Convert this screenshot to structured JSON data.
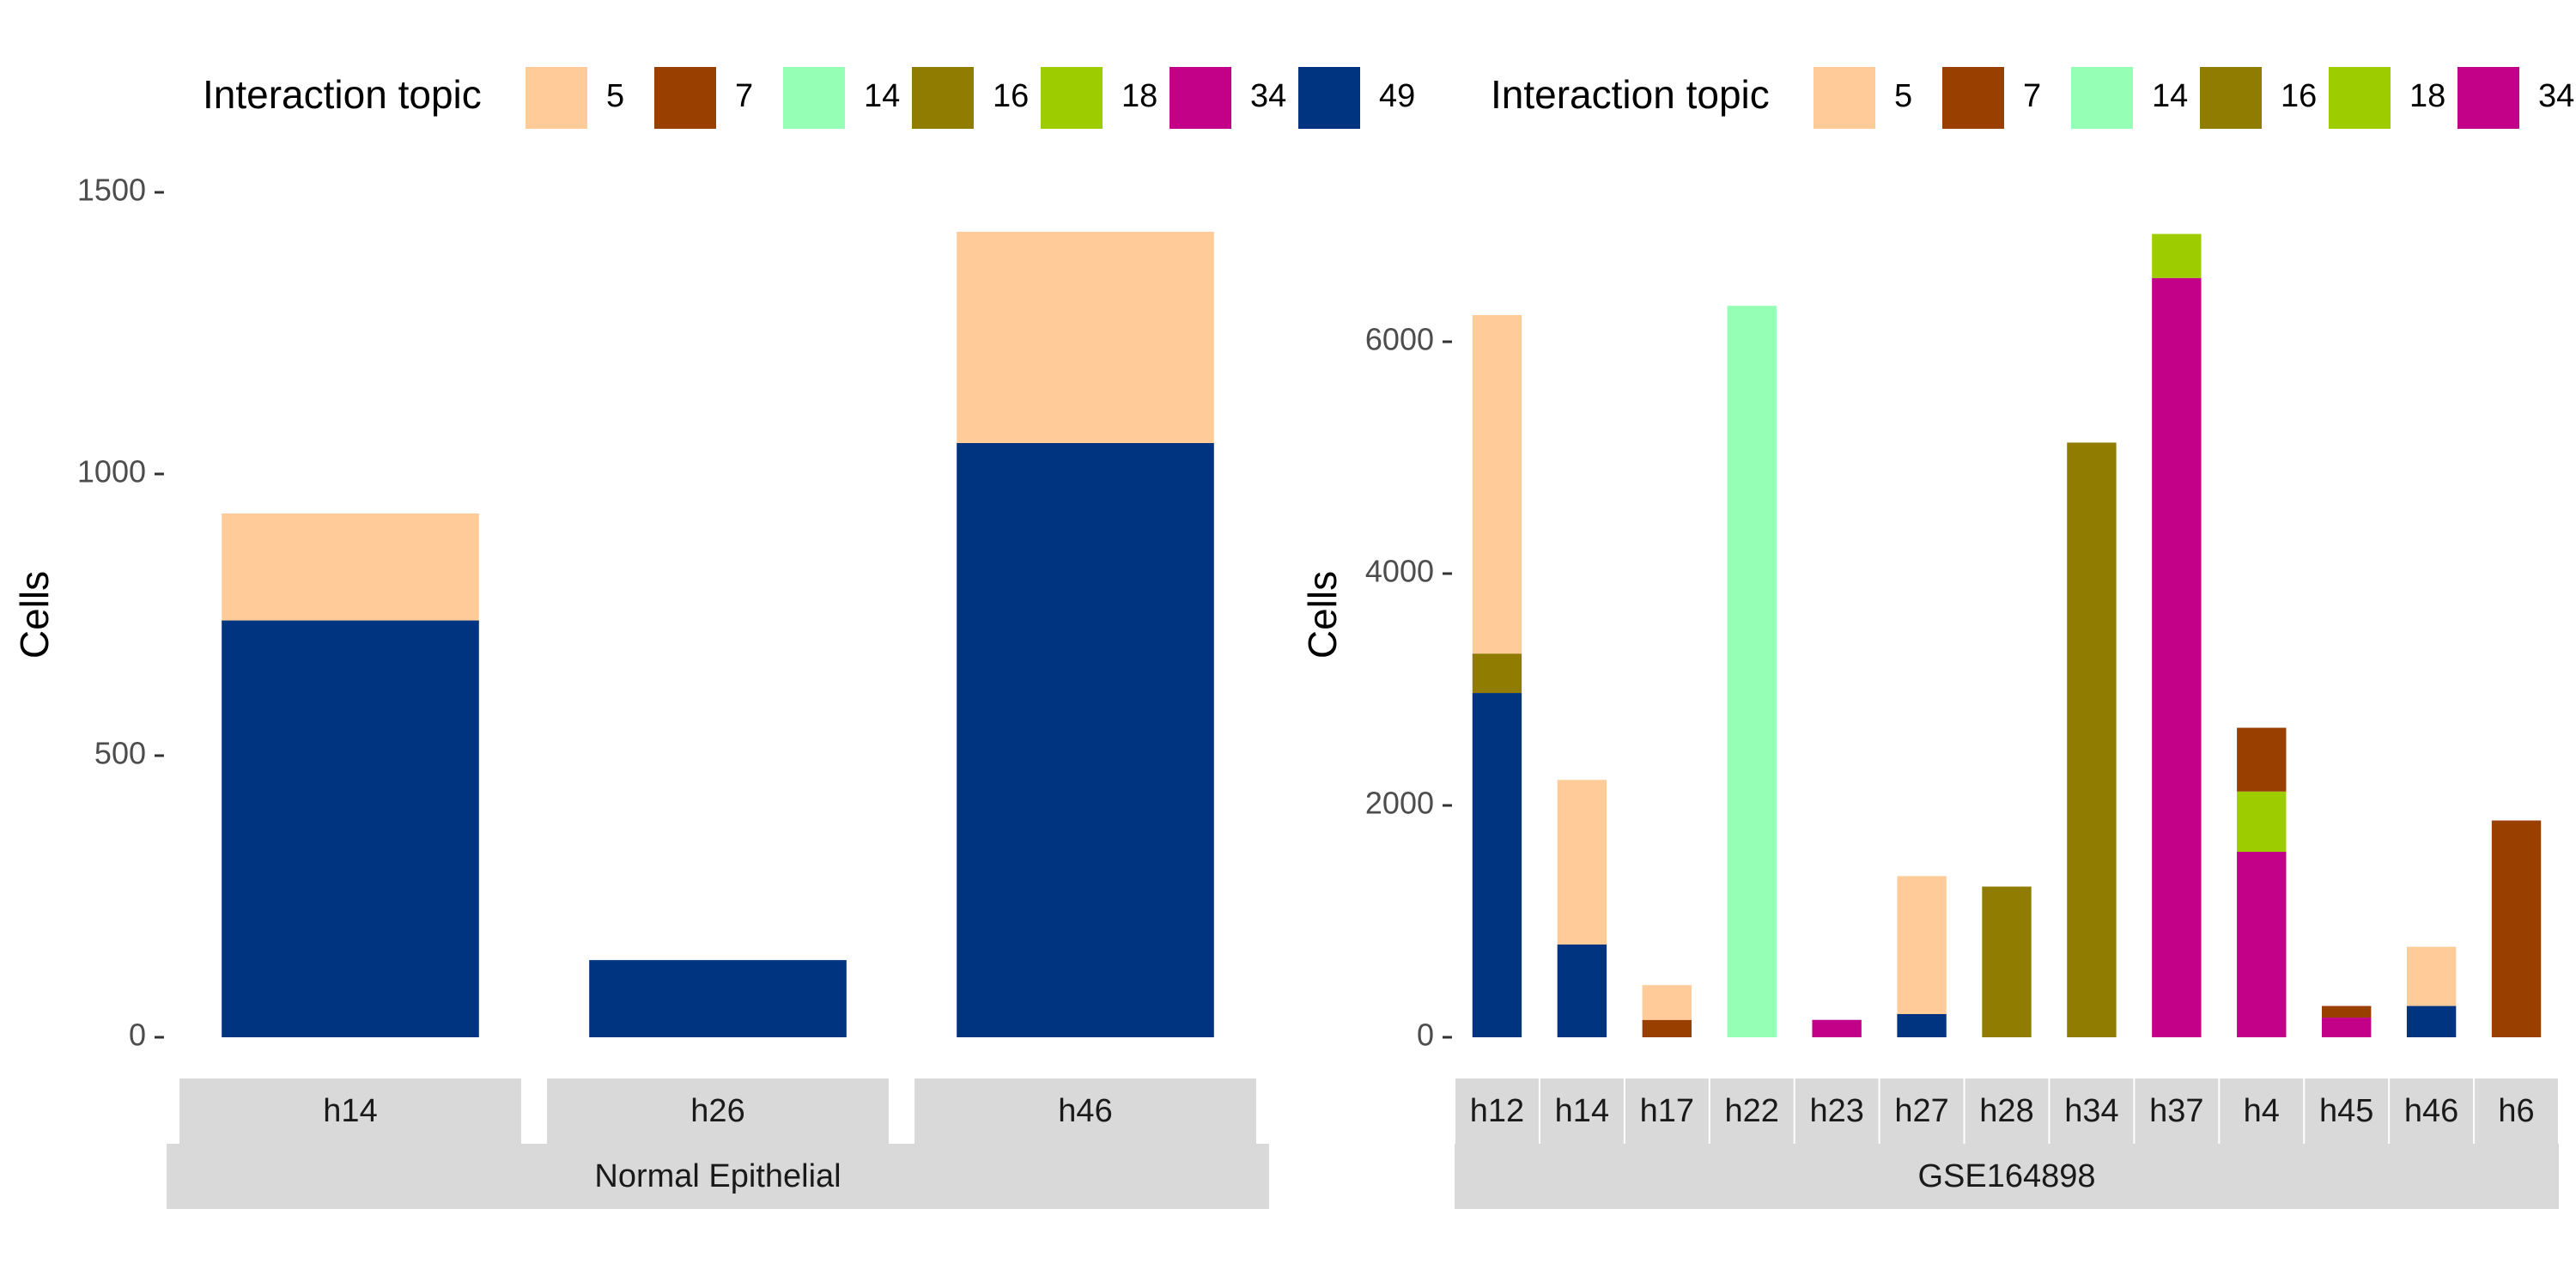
{
  "colors": {
    "5": "#FECB99",
    "7": "#993F00",
    "14": "#94FFB5",
    "16": "#8F7C00",
    "18": "#9DCC00",
    "34": "#C20088",
    "49": "#003380",
    "strip": "#D9D9D9",
    "tick": "#4D4D4D",
    "text": "#000000",
    "strip_text": "#1A1A1A"
  },
  "chart_data": [
    {
      "type": "bar",
      "stacked": true,
      "title": "",
      "xlabel": "",
      "ylabel": "Cells",
      "ylim": [
        0,
        1500
      ],
      "yticks": [
        0,
        500,
        1000,
        1500
      ],
      "ytick_labels": [
        "0",
        "500",
        "1000",
        "1500"
      ],
      "legend": {
        "title": "Interaction topic",
        "position": "top",
        "entries": [
          {
            "label": "5",
            "color": "#FECB99"
          },
          {
            "label": "7",
            "color": "#993F00"
          },
          {
            "label": "14",
            "color": "#94FFB5"
          },
          {
            "label": "16",
            "color": "#8F7C00"
          },
          {
            "label": "18",
            "color": "#9DCC00"
          },
          {
            "label": "34",
            "color": "#C20088"
          },
          {
            "label": "49",
            "color": "#003380"
          }
        ]
      },
      "facet_group": "Normal Epithelial",
      "categories": [
        "h14",
        "h26",
        "h46"
      ],
      "series": [
        {
          "name": "49",
          "values": [
            740,
            137,
            1055
          ]
        },
        {
          "name": "5",
          "values": [
            190,
            0,
            375
          ]
        }
      ]
    },
    {
      "type": "bar",
      "stacked": true,
      "title": "",
      "xlabel": "",
      "ylabel": "Cells",
      "ylim": [
        0,
        7000
      ],
      "yticks": [
        0,
        2000,
        4000,
        6000
      ],
      "ytick_labels": [
        "0",
        "2000",
        "4000",
        "6000"
      ],
      "legend": {
        "title": "Interaction topic",
        "position": "top",
        "entries": [
          {
            "label": "5",
            "color": "#FECB99"
          },
          {
            "label": "7",
            "color": "#993F00"
          },
          {
            "label": "14",
            "color": "#94FFB5"
          },
          {
            "label": "16",
            "color": "#8F7C00"
          },
          {
            "label": "18",
            "color": "#9DCC00"
          },
          {
            "label": "34",
            "color": "#C20088"
          }
        ]
      },
      "facet_group": "GSE164898",
      "categories": [
        "h12",
        "h14",
        "h17",
        "h22",
        "h23",
        "h27",
        "h28",
        "h34",
        "h37",
        "h4",
        "h45",
        "h46",
        "h6"
      ],
      "series": [
        {
          "name": "49",
          "values": [
            2970,
            800,
            0,
            0,
            0,
            200,
            0,
            0,
            0,
            0,
            0,
            270,
            0
          ]
        },
        {
          "name": "34",
          "values": [
            0,
            0,
            0,
            0,
            150,
            0,
            0,
            0,
            6550,
            1600,
            170,
            0,
            0
          ]
        },
        {
          "name": "16",
          "values": [
            340,
            0,
            0,
            0,
            0,
            0,
            1300,
            5130,
            0,
            0,
            0,
            0,
            0
          ]
        },
        {
          "name": "14",
          "values": [
            0,
            0,
            0,
            6310,
            0,
            0,
            0,
            0,
            0,
            0,
            0,
            0,
            0
          ]
        },
        {
          "name": "18",
          "values": [
            0,
            0,
            0,
            0,
            0,
            0,
            0,
            0,
            380,
            520,
            0,
            0,
            0
          ]
        },
        {
          "name": "7",
          "values": [
            0,
            0,
            150,
            0,
            0,
            0,
            0,
            0,
            0,
            550,
            100,
            0,
            1870
          ]
        },
        {
          "name": "5",
          "values": [
            2920,
            1420,
            300,
            0,
            0,
            1190,
            0,
            0,
            0,
            0,
            0,
            510,
            0
          ]
        }
      ]
    }
  ]
}
